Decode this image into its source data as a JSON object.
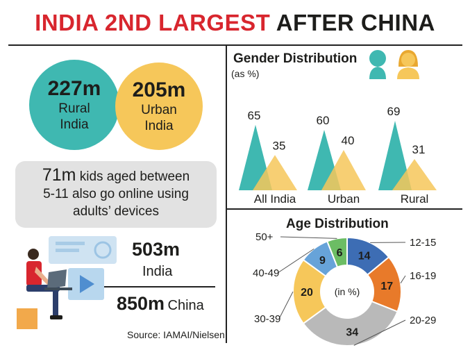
{
  "header": {
    "title_red": "INDIA 2ND LARGEST",
    "title_black": " AFTER CHINA"
  },
  "users": {
    "rural": {
      "value": "227m",
      "label_line1": "Rural",
      "label_line2": "India"
    },
    "urban": {
      "value": "205m",
      "label_line1": "Urban",
      "label_line2": "India"
    }
  },
  "kids": {
    "count": "71m",
    "line1_rest": " kids aged between",
    "line2": "5-11 also go online using",
    "line3": "adults’ devices"
  },
  "totals": {
    "india": {
      "value": "503m",
      "label": "India"
    },
    "china": {
      "value": "850m",
      "label": "China"
    }
  },
  "source": "Source: IAMAI/Nielsen",
  "colors": {
    "red": "#d8262e",
    "teal": "#3fb8b1",
    "yellow": "#f6c75a",
    "gray_box": "#e2e2e2",
    "blue": "#3d6db4",
    "orange": "#e87a2a",
    "gray": "#b9b9b9",
    "light_blue": "#67a3d9",
    "green": "#6cbd64"
  },
  "icons": [
    "man-head-icon",
    "woman-head-icon",
    "laptop-user-icon",
    "chat-screen-icon",
    "video-play-icon"
  ],
  "chart_data": [
    {
      "type": "bar",
      "title": "Gender Distribution",
      "subtitle": "(as %)",
      "categories": [
        "All India",
        "Urban",
        "Rural"
      ],
      "series": [
        {
          "name": "Male",
          "values": [
            65,
            60,
            69
          ]
        },
        {
          "name": "Female",
          "values": [
            35,
            40,
            31
          ]
        }
      ],
      "ylim": [
        0,
        100
      ],
      "xlabel": "",
      "ylabel": ""
    },
    {
      "type": "pie",
      "title": "Age Distribution",
      "center_label": "(in %)",
      "labels": [
        "12-15",
        "16-19",
        "20-29",
        "30-39",
        "40-49",
        "50+"
      ],
      "values": [
        14,
        17,
        34,
        20,
        9,
        6
      ],
      "value_labels": [
        "14",
        "17",
        "34",
        "20",
        "9",
        "6"
      ]
    }
  ]
}
